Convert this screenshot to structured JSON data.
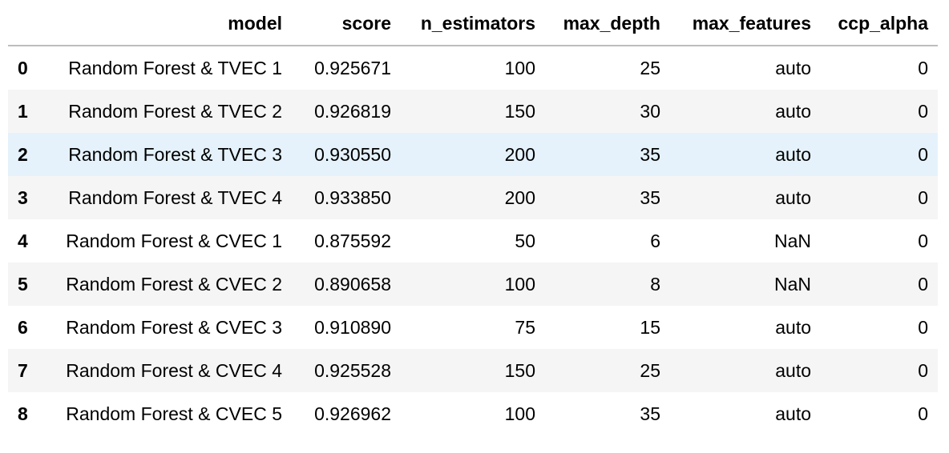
{
  "table": {
    "columns": [
      "",
      "model",
      "score",
      "n_estimators",
      "max_depth",
      "max_features",
      "ccp_alpha"
    ],
    "highlighted_row": 2,
    "rows": [
      {
        "index": "0",
        "model": "Random Forest & TVEC 1",
        "score": "0.925671",
        "n_estimators": "100",
        "max_depth": "25",
        "max_features": "auto",
        "ccp_alpha": "0"
      },
      {
        "index": "1",
        "model": "Random Forest & TVEC 2",
        "score": "0.926819",
        "n_estimators": "150",
        "max_depth": "30",
        "max_features": "auto",
        "ccp_alpha": "0"
      },
      {
        "index": "2",
        "model": "Random Forest & TVEC 3",
        "score": "0.930550",
        "n_estimators": "200",
        "max_depth": "35",
        "max_features": "auto",
        "ccp_alpha": "0"
      },
      {
        "index": "3",
        "model": "Random Forest & TVEC 4",
        "score": "0.933850",
        "n_estimators": "200",
        "max_depth": "35",
        "max_features": "auto",
        "ccp_alpha": "0"
      },
      {
        "index": "4",
        "model": "Random Forest & CVEC 1",
        "score": "0.875592",
        "n_estimators": "50",
        "max_depth": "6",
        "max_features": "NaN",
        "ccp_alpha": "0"
      },
      {
        "index": "5",
        "model": "Random Forest & CVEC 2",
        "score": "0.890658",
        "n_estimators": "100",
        "max_depth": "8",
        "max_features": "NaN",
        "ccp_alpha": "0"
      },
      {
        "index": "6",
        "model": "Random Forest & CVEC 3",
        "score": "0.910890",
        "n_estimators": "75",
        "max_depth": "15",
        "max_features": "auto",
        "ccp_alpha": "0"
      },
      {
        "index": "7",
        "model": "Random Forest & CVEC 4",
        "score": "0.925528",
        "n_estimators": "150",
        "max_depth": "25",
        "max_features": "auto",
        "ccp_alpha": "0"
      },
      {
        "index": "8",
        "model": "Random Forest & CVEC 5",
        "score": "0.926962",
        "n_estimators": "100",
        "max_depth": "35",
        "max_features": "auto",
        "ccp_alpha": "0"
      }
    ]
  }
}
